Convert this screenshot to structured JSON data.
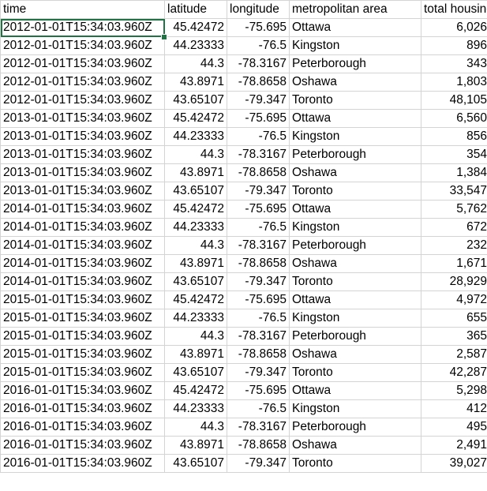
{
  "headers": [
    "time",
    "latitude",
    "longitude",
    "metropolitan area",
    "total housing"
  ],
  "rows": [
    [
      "2012-01-01T15:34:03.960Z",
      "45.42472",
      "-75.695",
      "Ottawa",
      "6,026"
    ],
    [
      "2012-01-01T15:34:03.960Z",
      "44.23333",
      "-76.5",
      "Kingston",
      "896"
    ],
    [
      "2012-01-01T15:34:03.960Z",
      "44.3",
      "-78.3167",
      "Peterborough",
      "343"
    ],
    [
      "2012-01-01T15:34:03.960Z",
      "43.8971",
      "-78.8658",
      "Oshawa",
      "1,803"
    ],
    [
      "2012-01-01T15:34:03.960Z",
      "43.65107",
      "-79.347",
      "Toronto",
      "48,105"
    ],
    [
      "2013-01-01T15:34:03.960Z",
      "45.42472",
      "-75.695",
      "Ottawa",
      "6,560"
    ],
    [
      "2013-01-01T15:34:03.960Z",
      "44.23333",
      "-76.5",
      "Kingston",
      "856"
    ],
    [
      "2013-01-01T15:34:03.960Z",
      "44.3",
      "-78.3167",
      "Peterborough",
      "354"
    ],
    [
      "2013-01-01T15:34:03.960Z",
      "43.8971",
      "-78.8658",
      "Oshawa",
      "1,384"
    ],
    [
      "2013-01-01T15:34:03.960Z",
      "43.65107",
      "-79.347",
      "Toronto",
      "33,547"
    ],
    [
      "2014-01-01T15:34:03.960Z",
      "45.42472",
      "-75.695",
      "Ottawa",
      "5,762"
    ],
    [
      "2014-01-01T15:34:03.960Z",
      "44.23333",
      "-76.5",
      "Kingston",
      "672"
    ],
    [
      "2014-01-01T15:34:03.960Z",
      "44.3",
      "-78.3167",
      "Peterborough",
      "232"
    ],
    [
      "2014-01-01T15:34:03.960Z",
      "43.8971",
      "-78.8658",
      "Oshawa",
      "1,671"
    ],
    [
      "2014-01-01T15:34:03.960Z",
      "43.65107",
      "-79.347",
      "Toronto",
      "28,929"
    ],
    [
      "2015-01-01T15:34:03.960Z",
      "45.42472",
      "-75.695",
      "Ottawa",
      "4,972"
    ],
    [
      "2015-01-01T15:34:03.960Z",
      "44.23333",
      "-76.5",
      "Kingston",
      "655"
    ],
    [
      "2015-01-01T15:34:03.960Z",
      "44.3",
      "-78.3167",
      "Peterborough",
      "365"
    ],
    [
      "2015-01-01T15:34:03.960Z",
      "43.8971",
      "-78.8658",
      "Oshawa",
      "2,587"
    ],
    [
      "2015-01-01T15:34:03.960Z",
      "43.65107",
      "-79.347",
      "Toronto",
      "42,287"
    ],
    [
      "2016-01-01T15:34:03.960Z",
      "45.42472",
      "-75.695",
      "Ottawa",
      "5,298"
    ],
    [
      "2016-01-01T15:34:03.960Z",
      "44.23333",
      "-76.5",
      "Kingston",
      "412"
    ],
    [
      "2016-01-01T15:34:03.960Z",
      "44.3",
      "-78.3167",
      "Peterborough",
      "495"
    ],
    [
      "2016-01-01T15:34:03.960Z",
      "43.8971",
      "-78.8658",
      "Oshawa",
      "2,491"
    ],
    [
      "2016-01-01T15:34:03.960Z",
      "43.65107",
      "-79.347",
      "Toronto",
      "39,027"
    ]
  ],
  "colors": {
    "grid": "#d4d4d4",
    "selection": "#217346"
  }
}
